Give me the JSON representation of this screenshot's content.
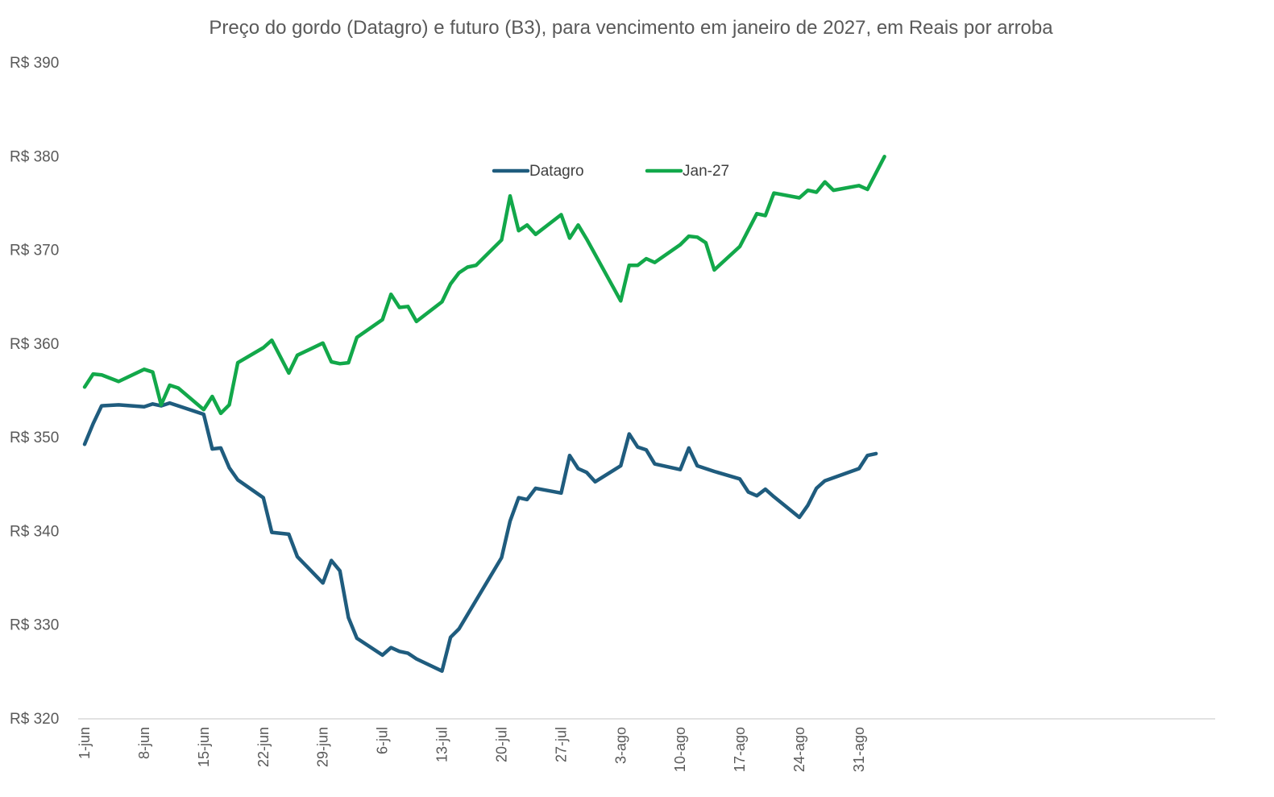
{
  "chart_data": {
    "type": "line",
    "title": "Preço do gordo (Datagro) e futuro (B3), para vencimento em janeiro de 2027, em Reais por arroba",
    "xlabel": "",
    "ylabel": "",
    "ylim": [
      320,
      390
    ],
    "y_ticks": [
      320,
      330,
      340,
      350,
      360,
      370,
      380,
      390
    ],
    "y_tick_labels": [
      "R$ 320",
      "R$ 330",
      "R$ 340",
      "R$ 350",
      "R$ 360",
      "R$ 370",
      "R$ 380",
      "R$ 390"
    ],
    "x_tick_labels": [
      "1-jun",
      "8-jun",
      "15-jun",
      "22-jun",
      "29-jun",
      "6-jul",
      "13-jul",
      "20-jul",
      "27-jul",
      "3-ago",
      "10-ago",
      "17-ago",
      "24-ago",
      "31-ago"
    ],
    "x_tick_days": [
      0,
      7,
      14,
      21,
      28,
      35,
      42,
      49,
      56,
      63,
      70,
      77,
      84,
      91
    ],
    "x_label_start": "1-jun",
    "x_range_days": [
      0,
      94
    ],
    "grid": false,
    "legend_position": "top-center",
    "series": [
      {
        "name": "Datagro",
        "color": "#1F5C7E",
        "points": [
          [
            0,
            349.3
          ],
          [
            1,
            351.5
          ],
          [
            2,
            353.4
          ],
          [
            4,
            353.5
          ],
          [
            7,
            353.3
          ],
          [
            8,
            353.6
          ],
          [
            9,
            353.4
          ],
          [
            10,
            353.7
          ],
          [
            14,
            352.5
          ],
          [
            15,
            348.8
          ],
          [
            16,
            348.9
          ],
          [
            17,
            346.8
          ],
          [
            18,
            345.5
          ],
          [
            21,
            343.6
          ],
          [
            22,
            339.9
          ],
          [
            24,
            339.7
          ],
          [
            25,
            337.3
          ],
          [
            28,
            334.5
          ],
          [
            29,
            336.9
          ],
          [
            30,
            335.8
          ],
          [
            31,
            330.8
          ],
          [
            32,
            328.6
          ],
          [
            35,
            326.8
          ],
          [
            36,
            327.6
          ],
          [
            37,
            327.2
          ],
          [
            38,
            327.0
          ],
          [
            39,
            326.4
          ],
          [
            42,
            325.1
          ],
          [
            43,
            328.7
          ],
          [
            44,
            329.6
          ],
          [
            49,
            337.2
          ],
          [
            50,
            341.1
          ],
          [
            51,
            343.6
          ],
          [
            52,
            343.4
          ],
          [
            53,
            344.6
          ],
          [
            56,
            344.1
          ],
          [
            57,
            348.1
          ],
          [
            58,
            346.7
          ],
          [
            59,
            346.3
          ],
          [
            60,
            345.3
          ],
          [
            63,
            347.0
          ],
          [
            64,
            350.4
          ],
          [
            65,
            349.0
          ],
          [
            66,
            348.7
          ],
          [
            67,
            347.2
          ],
          [
            70,
            346.6
          ],
          [
            71,
            348.9
          ],
          [
            72,
            347.0
          ],
          [
            74,
            346.4
          ],
          [
            77,
            345.6
          ],
          [
            78,
            344.2
          ],
          [
            79,
            343.8
          ],
          [
            80,
            344.5
          ],
          [
            81,
            343.7
          ],
          [
            84,
            341.5
          ],
          [
            85,
            342.8
          ],
          [
            86,
            344.6
          ],
          [
            87,
            345.4
          ],
          [
            91,
            346.7
          ],
          [
            92,
            348.1
          ],
          [
            93,
            348.3
          ]
        ]
      },
      {
        "name": "Jan-27",
        "color": "#12A84A",
        "points": [
          [
            0,
            355.4
          ],
          [
            1,
            356.8
          ],
          [
            2,
            356.7
          ],
          [
            4,
            356.0
          ],
          [
            7,
            357.3
          ],
          [
            8,
            357.0
          ],
          [
            9,
            353.5
          ],
          [
            10,
            355.6
          ],
          [
            11,
            355.3
          ],
          [
            14,
            353.0
          ],
          [
            15,
            354.4
          ],
          [
            16,
            352.6
          ],
          [
            17,
            353.5
          ],
          [
            18,
            358.0
          ],
          [
            21,
            359.6
          ],
          [
            22,
            360.4
          ],
          [
            24,
            356.9
          ],
          [
            25,
            358.8
          ],
          [
            28,
            360.1
          ],
          [
            29,
            358.1
          ],
          [
            30,
            357.9
          ],
          [
            31,
            358.0
          ],
          [
            32,
            360.7
          ],
          [
            35,
            362.6
          ],
          [
            36,
            365.3
          ],
          [
            37,
            363.9
          ],
          [
            38,
            364.0
          ],
          [
            39,
            362.4
          ],
          [
            42,
            364.5
          ],
          [
            43,
            366.4
          ],
          [
            44,
            367.6
          ],
          [
            45,
            368.2
          ],
          [
            46,
            368.4
          ],
          [
            49,
            371.1
          ],
          [
            50,
            375.8
          ],
          [
            51,
            372.1
          ],
          [
            52,
            372.7
          ],
          [
            53,
            371.7
          ],
          [
            56,
            373.8
          ],
          [
            57,
            371.3
          ],
          [
            58,
            372.7
          ],
          [
            59,
            371.2
          ],
          [
            63,
            364.6
          ],
          [
            64,
            368.4
          ],
          [
            65,
            368.4
          ],
          [
            66,
            369.1
          ],
          [
            67,
            368.7
          ],
          [
            70,
            370.6
          ],
          [
            71,
            371.5
          ],
          [
            72,
            371.4
          ],
          [
            73,
            370.8
          ],
          [
            74,
            367.9
          ],
          [
            77,
            370.4
          ],
          [
            79,
            373.9
          ],
          [
            80,
            373.7
          ],
          [
            81,
            376.1
          ],
          [
            84,
            375.6
          ],
          [
            85,
            376.4
          ],
          [
            86,
            376.2
          ],
          [
            87,
            377.3
          ],
          [
            88,
            376.4
          ],
          [
            91,
            376.9
          ],
          [
            92,
            376.5
          ],
          [
            94,
            380.0
          ]
        ]
      }
    ]
  }
}
